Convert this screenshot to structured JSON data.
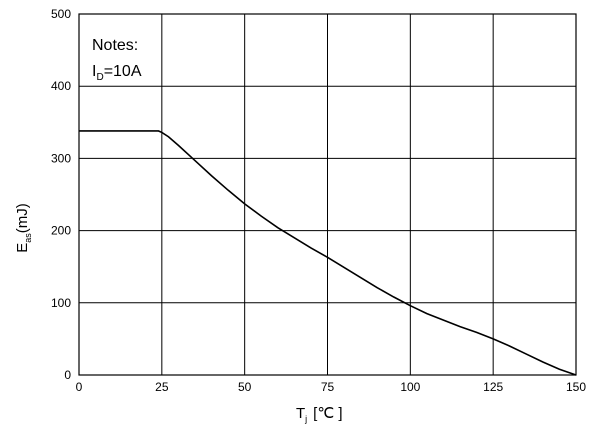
{
  "chart_data": {
    "type": "line",
    "title": "",
    "xlabel": {
      "main": "T",
      "sub": "j",
      "unit": "[℃ ]"
    },
    "ylabel": {
      "main": "E",
      "sub": "as",
      "unit": "(mJ)"
    },
    "xlim": [
      0,
      150
    ],
    "ylim": [
      0,
      500
    ],
    "xticks": [
      "0",
      "25",
      "50",
      "75",
      "100",
      "125",
      "150"
    ],
    "yticks": [
      "0",
      "100",
      "200",
      "300",
      "400",
      "500"
    ],
    "grid": true,
    "notes": {
      "title": "Notes:",
      "line_main": "I",
      "line_sub": "D",
      "line_value": "=10A"
    },
    "series": [
      {
        "x": [
          0,
          10,
          20,
          24,
          25,
          27,
          30,
          35,
          40,
          45,
          50,
          55,
          60,
          65,
          70,
          75,
          80,
          85,
          90,
          95,
          100,
          105,
          110,
          115,
          120,
          125,
          130,
          135,
          140,
          145,
          150
        ],
        "y": [
          338,
          338,
          338,
          338,
          336,
          330,
          318,
          297,
          276,
          256,
          237,
          220,
          204,
          190,
          176,
          163,
          149,
          135,
          121,
          108,
          96,
          85,
          76,
          67,
          59,
          50,
          40,
          29,
          18,
          8,
          0
        ]
      }
    ]
  }
}
